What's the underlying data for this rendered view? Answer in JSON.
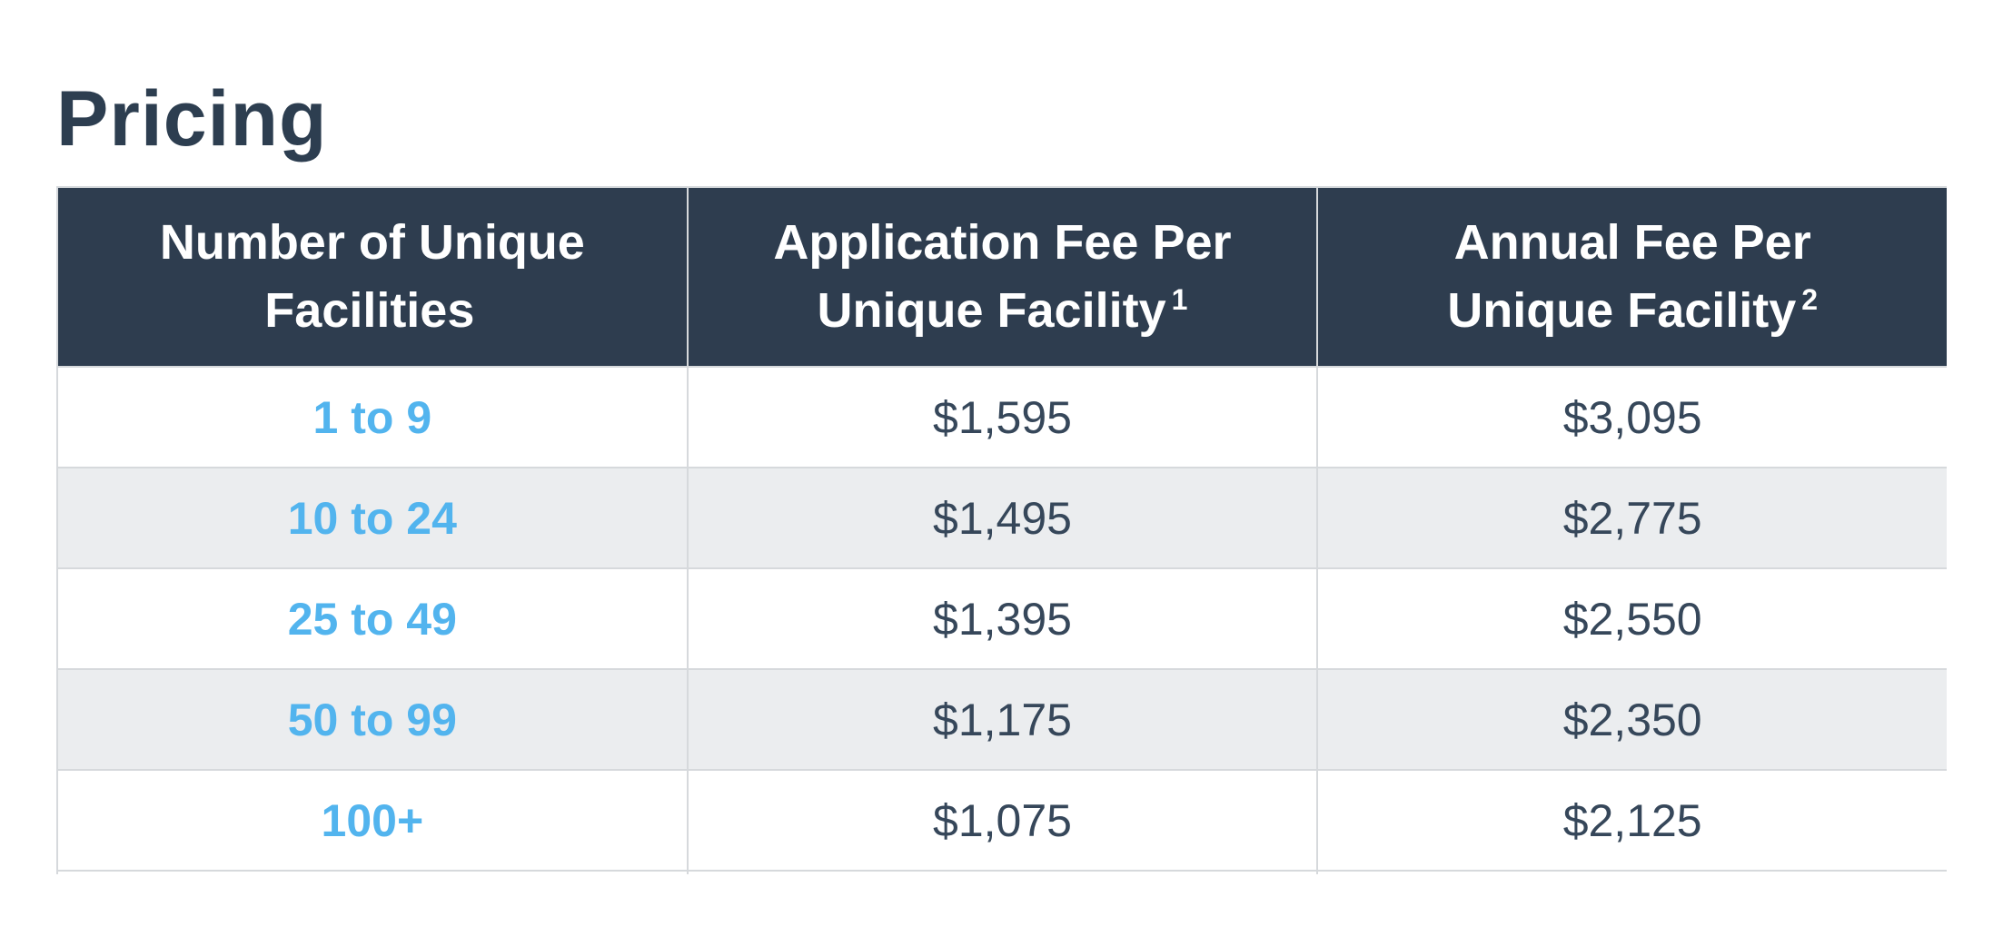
{
  "page": {
    "title": "Pricing"
  },
  "pricing_table": {
    "columns": [
      {
        "label": "Number of Unique Facilities",
        "footnote": ""
      },
      {
        "label": "Application Fee Per Unique Facility",
        "footnote": "1"
      },
      {
        "label": "Annual Fee Per Unique Facility",
        "footnote": "2"
      }
    ],
    "rows": [
      {
        "facilities": "1 to 9",
        "application_fee": "$1,595",
        "annual_fee": "$3,095"
      },
      {
        "facilities": "10 to 24",
        "application_fee": "$1,495",
        "annual_fee": "$2,775"
      },
      {
        "facilities": "25 to 49",
        "application_fee": "$1,395",
        "annual_fee": "$2,550"
      },
      {
        "facilities": "50 to 99",
        "application_fee": "$1,175",
        "annual_fee": "$2,350"
      },
      {
        "facilities": "100+",
        "application_fee": "$1,075",
        "annual_fee": "$2,125"
      }
    ]
  },
  "colors": {
    "header_background": "#2e3d4f",
    "heading_text": "#2d3e50",
    "body_text": "#36475a",
    "tier_link_blue": "#52b4ee",
    "alt_row_background": "#ebedef",
    "table_border": "#d6d9dc"
  }
}
